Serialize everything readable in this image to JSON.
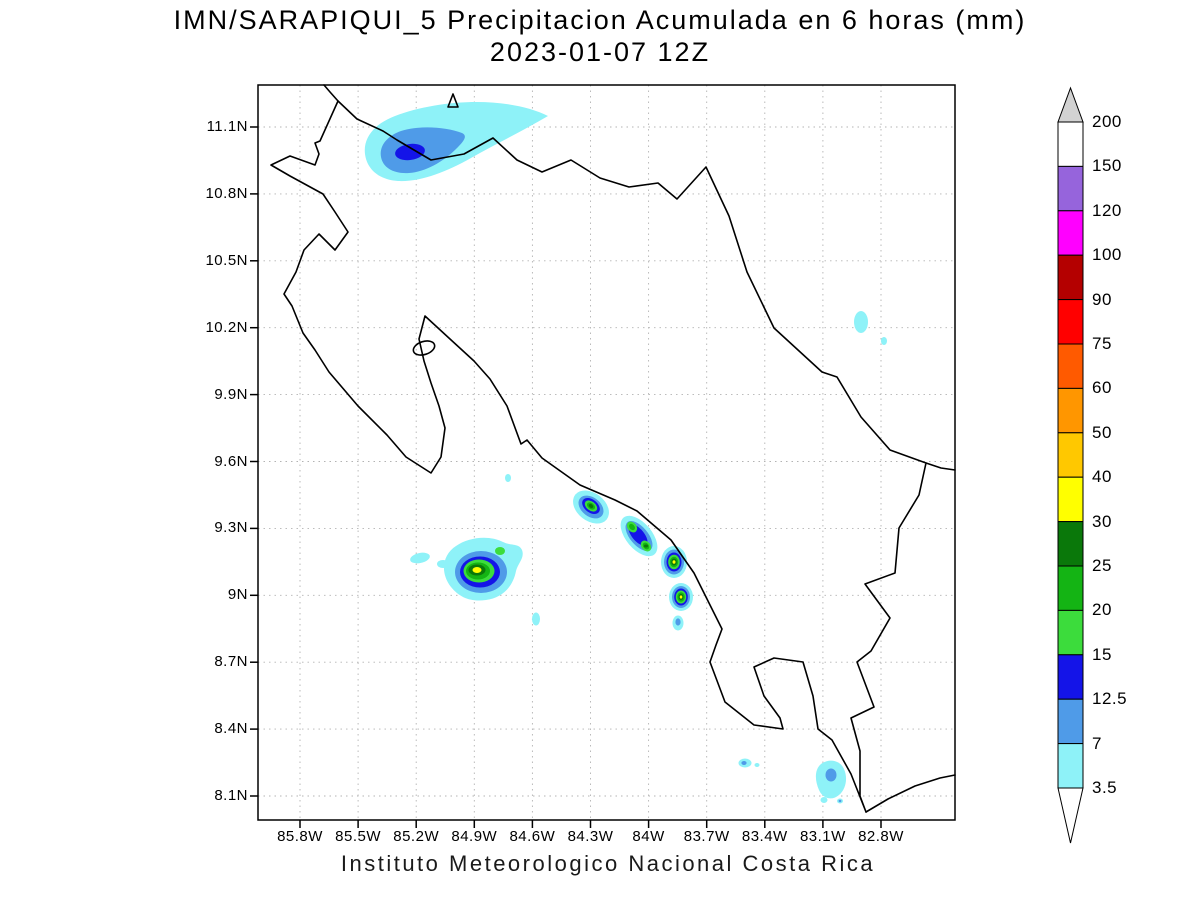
{
  "header": {
    "title_line1": "IMN/SARAPIQUI_5 Precipitacion Acumulada en 6 horas (mm)",
    "title_line2": "2023-01-07 12Z"
  },
  "footer": {
    "text": "Instituto Meteorologico Nacional Costa Rica"
  },
  "map": {
    "lat_ticks": [
      "11.1N",
      "10.8N",
      "10.5N",
      "10.2N",
      "9.9N",
      "9.6N",
      "9.3N",
      "9N",
      "8.7N",
      "8.4N",
      "8.1N"
    ],
    "lon_ticks": [
      "85.8W",
      "85.5W",
      "85.2W",
      "84.9W",
      "84.6W",
      "84.3W",
      "84W",
      "83.7W",
      "83.4W",
      "83.1W",
      "82.8W"
    ]
  },
  "colorbar": {
    "labels_top_to_bottom": [
      "200",
      "150",
      "120",
      "100",
      "90",
      "75",
      "60",
      "50",
      "40",
      "30",
      "25",
      "20",
      "15",
      "12.5",
      "7",
      "3.5"
    ],
    "segment_colors_top_to_bottom": [
      "#FFFFFF",
      "#9664DC",
      "#FF00FF",
      "#B40000",
      "#FF0000",
      "#FF5A00",
      "#FF9600",
      "#FFC800",
      "#FFFF00",
      "#0A780A",
      "#14B414",
      "#3CDC3C",
      "#1414E8",
      "#4F9BE8",
      "#8EF2F8"
    ],
    "above_max_color": "#D2D2D2",
    "below_min_color": "#FFFFFF"
  },
  "chart_data": {
    "type": "contour-map",
    "title": "IMN/SARAPIQUI_5 Precipitacion Acumulada en 6 horas (mm)",
    "valid_time": "2023-01-07 12Z",
    "units": "mm",
    "region": "Costa Rica",
    "lon_range_deg_west": [
      86.0,
      82.45
    ],
    "lat_range_deg_north": [
      7.98,
      11.28
    ],
    "contour_levels_mm": [
      3.5,
      7,
      12.5,
      15,
      20,
      25,
      30,
      40,
      50,
      60,
      75,
      90,
      100,
      120,
      150,
      200
    ],
    "grid": "dashed",
    "legend_position": "right-vertical-colorbar",
    "precip_cells": [
      {
        "lon_w": 85.35,
        "lat_n": 10.95,
        "max_level_mm": 12.5,
        "note": "elongated band along northern border"
      },
      {
        "lon_w": 84.87,
        "lat_n": 9.12,
        "max_level_mm": 30,
        "note": "largest cell, yellow core"
      },
      {
        "lon_w": 84.3,
        "lat_n": 9.4,
        "max_level_mm": 25
      },
      {
        "lon_w": 84.05,
        "lat_n": 9.27,
        "max_level_mm": 25
      },
      {
        "lon_w": 83.87,
        "lat_n": 9.15,
        "max_level_mm": 30
      },
      {
        "lon_w": 83.83,
        "lat_n": 9.0,
        "max_level_mm": 30
      },
      {
        "lon_w": 83.5,
        "lat_n": 8.25,
        "max_level_mm": 7
      },
      {
        "lon_w": 83.05,
        "lat_n": 8.19,
        "max_level_mm": 7
      },
      {
        "lon_w": 82.9,
        "lat_n": 10.2,
        "max_level_mm": 3.5
      }
    ],
    "source": "Instituto Meteorologico Nacional Costa Rica"
  }
}
